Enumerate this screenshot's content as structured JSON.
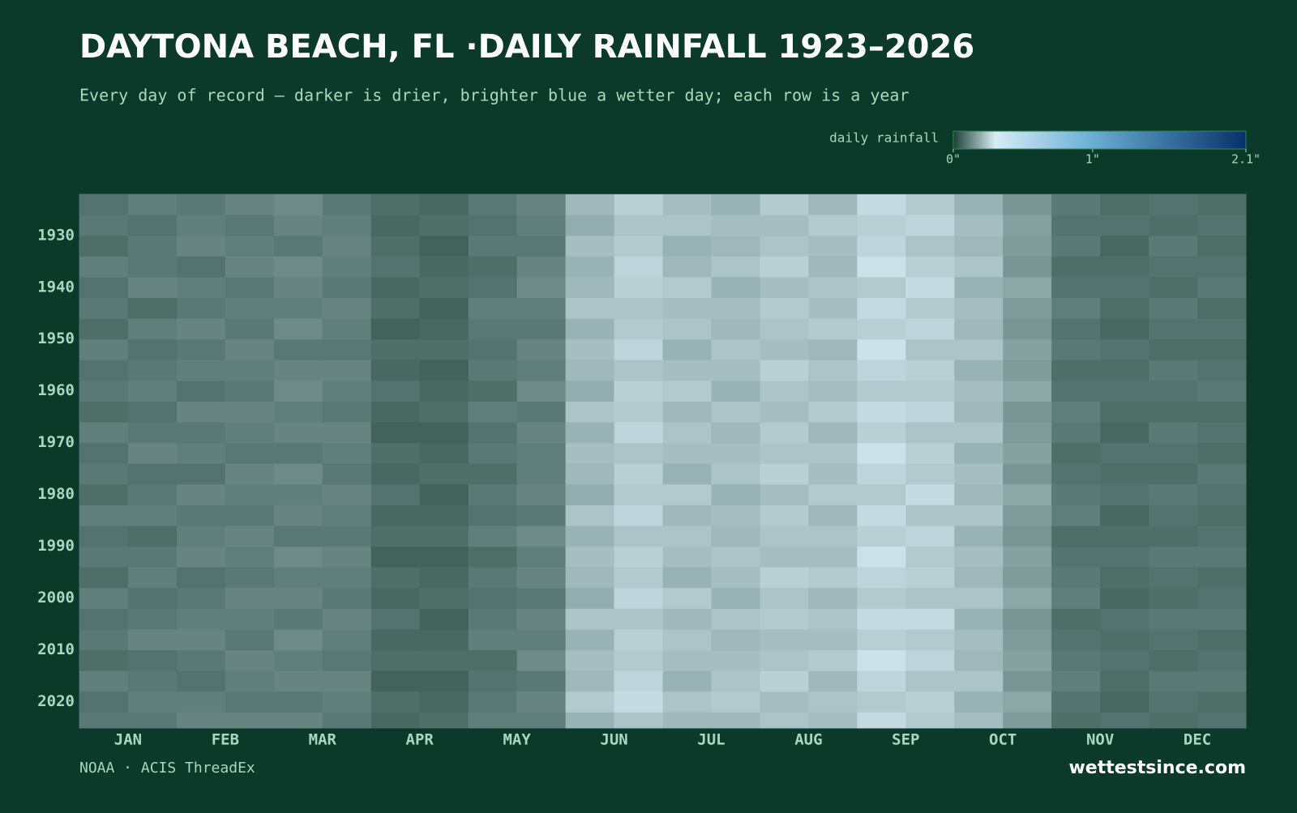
{
  "chart_data": {
    "type": "heatmap",
    "title": "DAYTONA BEACH, FL ·DAILY RAINFALL 1923–2026",
    "subtitle": "Every day of record — darker is drier, brighter blue a wetter day; each row is a year",
    "colorbar": {
      "label": "daily rainfall",
      "clim": [
        0,
        2.1
      ],
      "ticks": [
        {
          "value": 0,
          "label": "0\""
        },
        {
          "value": 1,
          "label": "1\""
        },
        {
          "value": 2.1,
          "label": "2.1\""
        }
      ],
      "colorscale": [
        [
          0,
          "#1c4034"
        ],
        [
          0.3,
          "#d8ebf4"
        ],
        [
          1,
          "#6aaed6"
        ],
        [
          2.1,
          "#08306b"
        ]
      ]
    },
    "categories": [
      "JAN",
      "FEB",
      "MAR",
      "APR",
      "MAY",
      "JUN",
      "JUL",
      "AUG",
      "SEP",
      "OCT",
      "NOV",
      "DEC"
    ],
    "ylim": [
      1923,
      2026
    ],
    "yticks": [
      1930,
      1940,
      1950,
      1960,
      1970,
      1980,
      1990,
      2000,
      2010,
      2020
    ],
    "row_starts": [
      1923,
      1927,
      1931,
      1935,
      1939,
      1943,
      1947,
      1951,
      1955,
      1959,
      1963,
      1967,
      1971,
      1975,
      1979,
      1983,
      1987,
      1991,
      1995,
      1999,
      2003,
      2007,
      2011,
      2015,
      2019,
      2023
    ],
    "values": [
      [
        0.09,
        0.11,
        0.1,
        0.12,
        0.13,
        0.1,
        0.08,
        0.07,
        0.1,
        0.12,
        0.21,
        0.25,
        0.22,
        0.2,
        0.24,
        0.21,
        0.27,
        0.24,
        0.2,
        0.15,
        0.1,
        0.08,
        0.09,
        0.08
      ],
      [
        0.1,
        0.09,
        0.11,
        0.1,
        0.12,
        0.11,
        0.07,
        0.08,
        0.09,
        0.11,
        0.19,
        0.23,
        0.23,
        0.22,
        0.22,
        0.24,
        0.25,
        0.26,
        0.22,
        0.17,
        0.09,
        0.09,
        0.08,
        0.09
      ],
      [
        0.08,
        0.1,
        0.12,
        0.11,
        0.1,
        0.12,
        0.08,
        0.06,
        0.1,
        0.1,
        0.22,
        0.24,
        0.2,
        0.21,
        0.23,
        0.22,
        0.26,
        0.23,
        0.21,
        0.16,
        0.1,
        0.07,
        0.1,
        0.08
      ],
      [
        0.11,
        0.1,
        0.09,
        0.12,
        0.13,
        0.11,
        0.09,
        0.07,
        0.08,
        0.12,
        0.2,
        0.26,
        0.21,
        0.23,
        0.25,
        0.21,
        0.28,
        0.25,
        0.23,
        0.15,
        0.08,
        0.08,
        0.09,
        0.09
      ],
      [
        0.09,
        0.12,
        0.11,
        0.1,
        0.12,
        0.1,
        0.07,
        0.08,
        0.09,
        0.13,
        0.21,
        0.25,
        0.24,
        0.2,
        0.22,
        0.23,
        0.24,
        0.27,
        0.2,
        0.18,
        0.09,
        0.09,
        0.08,
        0.1
      ],
      [
        0.1,
        0.08,
        0.1,
        0.11,
        0.11,
        0.12,
        0.08,
        0.06,
        0.11,
        0.11,
        0.23,
        0.23,
        0.22,
        0.22,
        0.24,
        0.22,
        0.27,
        0.24,
        0.22,
        0.16,
        0.11,
        0.08,
        0.1,
        0.08
      ],
      [
        0.08,
        0.11,
        0.12,
        0.1,
        0.13,
        0.11,
        0.06,
        0.07,
        0.1,
        0.1,
        0.2,
        0.24,
        0.23,
        0.21,
        0.23,
        0.24,
        0.25,
        0.26,
        0.21,
        0.15,
        0.09,
        0.07,
        0.09,
        0.09
      ],
      [
        0.11,
        0.09,
        0.1,
        0.12,
        0.1,
        0.1,
        0.08,
        0.08,
        0.09,
        0.12,
        0.22,
        0.26,
        0.2,
        0.23,
        0.22,
        0.21,
        0.28,
        0.23,
        0.23,
        0.17,
        0.1,
        0.09,
        0.08,
        0.08
      ],
      [
        0.09,
        0.1,
        0.11,
        0.11,
        0.12,
        0.12,
        0.07,
        0.06,
        0.1,
        0.11,
        0.21,
        0.23,
        0.22,
        0.22,
        0.25,
        0.23,
        0.26,
        0.25,
        0.2,
        0.16,
        0.08,
        0.08,
        0.1,
        0.09
      ],
      [
        0.1,
        0.11,
        0.09,
        0.1,
        0.13,
        0.11,
        0.09,
        0.07,
        0.08,
        0.13,
        0.19,
        0.25,
        0.24,
        0.2,
        0.23,
        0.22,
        0.24,
        0.24,
        0.22,
        0.18,
        0.09,
        0.09,
        0.09,
        0.1
      ],
      [
        0.08,
        0.09,
        0.12,
        0.12,
        0.11,
        0.1,
        0.07,
        0.08,
        0.11,
        0.1,
        0.23,
        0.24,
        0.21,
        0.23,
        0.22,
        0.24,
        0.27,
        0.26,
        0.21,
        0.15,
        0.11,
        0.08,
        0.08,
        0.08
      ],
      [
        0.11,
        0.1,
        0.1,
        0.11,
        0.12,
        0.12,
        0.06,
        0.06,
        0.09,
        0.12,
        0.2,
        0.26,
        0.23,
        0.21,
        0.24,
        0.21,
        0.25,
        0.23,
        0.23,
        0.16,
        0.1,
        0.07,
        0.1,
        0.09
      ],
      [
        0.09,
        0.12,
        0.11,
        0.1,
        0.1,
        0.11,
        0.08,
        0.07,
        0.1,
        0.11,
        0.22,
        0.23,
        0.22,
        0.22,
        0.23,
        0.23,
        0.28,
        0.25,
        0.2,
        0.17,
        0.08,
        0.09,
        0.09,
        0.08
      ],
      [
        0.1,
        0.09,
        0.09,
        0.12,
        0.13,
        0.1,
        0.07,
        0.08,
        0.08,
        0.11,
        0.21,
        0.25,
        0.2,
        0.23,
        0.25,
        0.22,
        0.26,
        0.24,
        0.22,
        0.15,
        0.09,
        0.08,
        0.08,
        0.1
      ],
      [
        0.08,
        0.1,
        0.12,
        0.11,
        0.11,
        0.12,
        0.09,
        0.06,
        0.1,
        0.12,
        0.19,
        0.24,
        0.24,
        0.2,
        0.22,
        0.24,
        0.24,
        0.27,
        0.21,
        0.18,
        0.1,
        0.09,
        0.1,
        0.09
      ],
      [
        0.11,
        0.11,
        0.1,
        0.1,
        0.12,
        0.11,
        0.07,
        0.07,
        0.09,
        0.1,
        0.23,
        0.26,
        0.21,
        0.22,
        0.24,
        0.21,
        0.27,
        0.23,
        0.23,
        0.16,
        0.11,
        0.07,
        0.09,
        0.08
      ],
      [
        0.09,
        0.08,
        0.11,
        0.12,
        0.1,
        0.1,
        0.08,
        0.08,
        0.11,
        0.13,
        0.2,
        0.23,
        0.23,
        0.21,
        0.23,
        0.23,
        0.25,
        0.26,
        0.2,
        0.15,
        0.08,
        0.08,
        0.08,
        0.09
      ],
      [
        0.1,
        0.1,
        0.12,
        0.11,
        0.13,
        0.12,
        0.06,
        0.06,
        0.08,
        0.11,
        0.22,
        0.25,
        0.22,
        0.23,
        0.22,
        0.22,
        0.28,
        0.24,
        0.22,
        0.17,
        0.09,
        0.09,
        0.1,
        0.1
      ],
      [
        0.08,
        0.11,
        0.09,
        0.1,
        0.11,
        0.11,
        0.08,
        0.07,
        0.1,
        0.12,
        0.21,
        0.24,
        0.2,
        0.22,
        0.25,
        0.24,
        0.26,
        0.25,
        0.21,
        0.16,
        0.1,
        0.08,
        0.09,
        0.08
      ],
      [
        0.11,
        0.09,
        0.1,
        0.12,
        0.12,
        0.1,
        0.07,
        0.08,
        0.09,
        0.1,
        0.19,
        0.26,
        0.24,
        0.2,
        0.23,
        0.21,
        0.24,
        0.23,
        0.23,
        0.18,
        0.11,
        0.07,
        0.08,
        0.09
      ],
      [
        0.09,
        0.1,
        0.11,
        0.11,
        0.1,
        0.12,
        0.09,
        0.06,
        0.1,
        0.12,
        0.23,
        0.23,
        0.21,
        0.23,
        0.24,
        0.23,
        0.27,
        0.27,
        0.2,
        0.15,
        0.08,
        0.09,
        0.1,
        0.1
      ],
      [
        0.1,
        0.12,
        0.12,
        0.1,
        0.13,
        0.11,
        0.07,
        0.07,
        0.11,
        0.11,
        0.2,
        0.25,
        0.23,
        0.21,
        0.22,
        0.22,
        0.25,
        0.24,
        0.22,
        0.16,
        0.09,
        0.08,
        0.09,
        0.08
      ],
      [
        0.08,
        0.09,
        0.1,
        0.12,
        0.11,
        0.1,
        0.08,
        0.08,
        0.08,
        0.13,
        0.22,
        0.24,
        0.22,
        0.22,
        0.23,
        0.24,
        0.28,
        0.26,
        0.21,
        0.17,
        0.1,
        0.09,
        0.08,
        0.09
      ],
      [
        0.11,
        0.1,
        0.09,
        0.11,
        0.12,
        0.12,
        0.06,
        0.06,
        0.09,
        0.1,
        0.21,
        0.26,
        0.2,
        0.23,
        0.25,
        0.21,
        0.26,
        0.23,
        0.23,
        0.15,
        0.11,
        0.08,
        0.1,
        0.1
      ],
      [
        0.09,
        0.11,
        0.11,
        0.1,
        0.1,
        0.11,
        0.08,
        0.07,
        0.1,
        0.12,
        0.24,
        0.27,
        0.23,
        0.24,
        0.22,
        0.23,
        0.24,
        0.25,
        0.2,
        0.18,
        0.09,
        0.07,
        0.09,
        0.08
      ],
      [
        0.1,
        0.1,
        0.12,
        0.12,
        0.12,
        0.1,
        0.07,
        0.08,
        0.11,
        0.11,
        0.2,
        0.23,
        0.21,
        0.21,
        0.23,
        0.22,
        0.27,
        0.24,
        0.22,
        0.16,
        0.08,
        0.09,
        0.08,
        0.09
      ]
    ]
  },
  "footer": {
    "source": "NOAA · ACIS ThreadEx",
    "brand": "wettestsince.com"
  }
}
